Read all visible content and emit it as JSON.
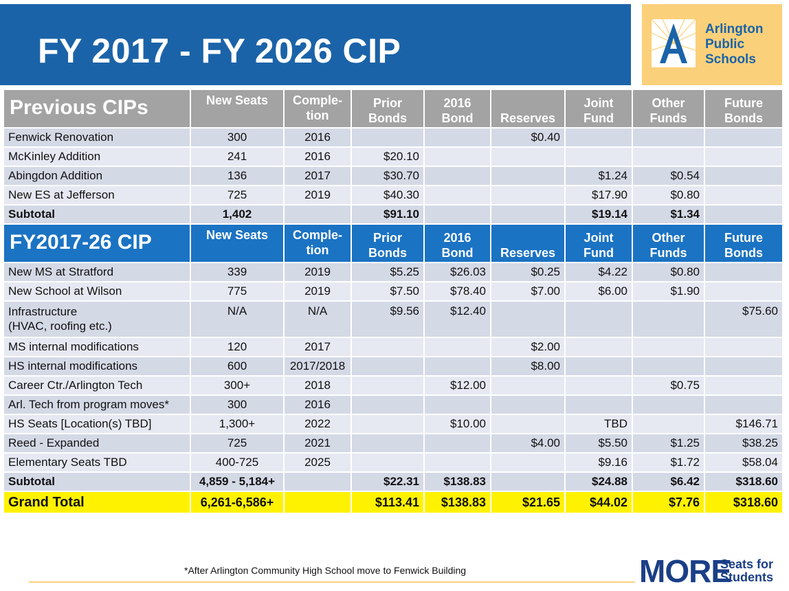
{
  "header": {
    "title": "FY 2017 - FY 2026 CIP"
  },
  "logo": {
    "line1": "Arlington",
    "line2": "Public",
    "line3": "Schools"
  },
  "previous_header": {
    "section": "Previous CIPs",
    "cols": [
      "New Seats",
      "Comple-\ntion",
      "Prior\nBonds",
      "2016\nBond",
      "Reserves",
      "Joint\nFund",
      "Other\nFunds",
      "Future\nBonds"
    ]
  },
  "previous_rows": [
    [
      "Fenwick Renovation",
      "300",
      "2016",
      "",
      "",
      "$0.40",
      "",
      "",
      ""
    ],
    [
      "McKinley Addition",
      "241",
      "2016",
      "$20.10",
      "",
      "",
      "",
      "",
      ""
    ],
    [
      "Abingdon Addition",
      "136",
      "2017",
      "$30.70",
      "",
      "",
      "$1.24",
      "$0.54",
      ""
    ],
    [
      "New ES at Jefferson",
      "725",
      "2019",
      "$40.30",
      "",
      "",
      "$17.90",
      "$0.80",
      ""
    ]
  ],
  "previous_subtotal": [
    "Subtotal",
    "1,402",
    "",
    "$91.10",
    "",
    "",
    "$19.14",
    "$1.34",
    ""
  ],
  "cip_header": {
    "section": "FY2017-26 CIP",
    "cols": [
      "New Seats",
      "Comple-\ntion",
      "Prior\nBonds",
      "2016\nBond",
      "Reserves",
      "Joint\nFund",
      "Other\nFunds",
      "Future\nBonds"
    ]
  },
  "cip_rows": [
    [
      "New MS at Stratford",
      "339",
      "2019",
      "$5.25",
      "$26.03",
      "$0.25",
      "$4.22",
      "$0.80",
      ""
    ],
    [
      "New School at Wilson",
      "775",
      "2019",
      "$7.50",
      "$78.40",
      "$7.00",
      "$6.00",
      "$1.90",
      ""
    ],
    [
      "Infrastructure\n(HVAC, roofing etc.)",
      "N/A",
      "N/A",
      "$9.56",
      "$12.40",
      "",
      "",
      "",
      "$75.60"
    ],
    [
      "MS internal modifications",
      "120",
      "2017",
      "",
      "",
      "$2.00",
      "",
      "",
      ""
    ],
    [
      "HS internal modifications",
      "600",
      "2017/2018",
      "",
      "",
      "$8.00",
      "",
      "",
      ""
    ],
    [
      "Career Ctr./Arlington Tech",
      "300+",
      "2018",
      "",
      "$12.00",
      "",
      "",
      "$0.75",
      ""
    ],
    [
      "Arl. Tech from program moves*",
      "300",
      "2016",
      "",
      "",
      "",
      "",
      "",
      ""
    ],
    [
      "HS Seats [Location(s) TBD]",
      "1,300+",
      "2022",
      "",
      "$10.00",
      "",
      "TBD",
      "",
      "$146.71"
    ],
    [
      "Reed - Expanded",
      "725",
      "2021",
      "",
      "",
      "$4.00",
      "$5.50",
      "$1.25",
      "$38.25"
    ],
    [
      "Elementary Seats TBD",
      "400-725",
      "2025",
      "",
      "",
      "",
      "$9.16",
      "$1.72",
      "$58.04"
    ]
  ],
  "cip_subtotal": [
    "Subtotal",
    "4,859 - 5,184+",
    "",
    "$22.31",
    "$138.83",
    "",
    "$24.88",
    "$6.42",
    "$318.60"
  ],
  "grand_total": [
    "Grand Total",
    "6,261-6,586+",
    "",
    "$113.41",
    "$138.83",
    "$21.65",
    "$44.02",
    "$7.76",
    "$318.60"
  ],
  "footnote": "*After Arlington Community High School move to Fenwick Building",
  "footer_logo": {
    "big": "MORE",
    "small1": "Seats for",
    "small2": "Students"
  },
  "colors": {
    "header_blue": "#1b63a8",
    "section_blue": "#1b73c3",
    "logo_gold": "#fbd07a",
    "total_yellow": "#fff200",
    "header_grey": "#a3a3a3"
  }
}
